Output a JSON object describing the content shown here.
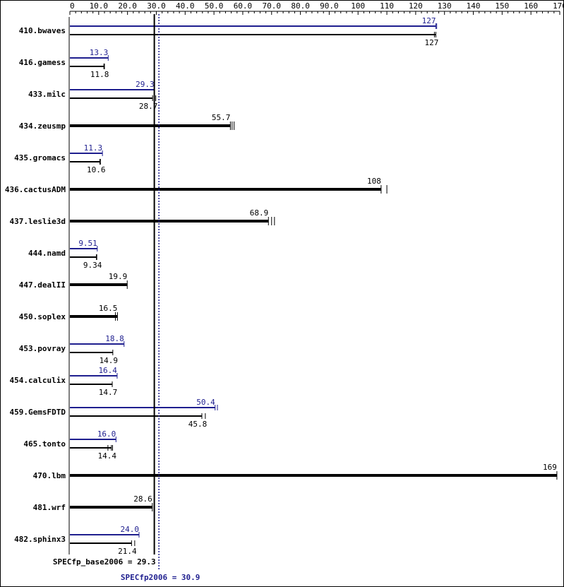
{
  "chart_data": {
    "type": "bar",
    "orientation": "horizontal",
    "xlim": [
      0,
      170
    ],
    "x_ticks": [
      "0",
      "10.0",
      "20.0",
      "30.0",
      "40.0",
      "50.0",
      "60.0",
      "70.0",
      "80.0",
      "90.0",
      "100",
      "110",
      "120",
      "130",
      "140",
      "150",
      "160",
      "170"
    ],
    "x_tick_values": [
      0,
      10,
      20,
      30,
      40,
      50,
      60,
      70,
      80,
      90,
      100,
      110,
      120,
      130,
      140,
      150,
      160,
      170
    ],
    "colors": {
      "base": "#000000",
      "peak": "#1f1f8f"
    },
    "categories": [
      "410.bwaves",
      "416.gamess",
      "433.milc",
      "434.zeusmp",
      "435.gromacs",
      "436.cactusADM",
      "437.leslie3d",
      "444.namd",
      "447.dealII",
      "450.soplex",
      "453.povray",
      "454.calculix",
      "459.GemsFDTD",
      "465.tonto",
      "470.lbm",
      "481.wrf",
      "482.sphinx3"
    ],
    "series": [
      {
        "key": "base",
        "values": [
          127,
          11.8,
          28.7,
          55.7,
          10.6,
          108,
          68.9,
          9.34,
          19.9,
          16.5,
          14.9,
          14.7,
          45.8,
          14.4,
          169,
          28.6,
          21.4
        ],
        "labels": [
          "127",
          "11.8",
          "28.7",
          "55.7",
          "10.6",
          "108",
          "68.9",
          "9.34",
          "19.9",
          "16.5",
          "14.9",
          "14.7",
          "45.8",
          "14.4",
          "169",
          "28.6",
          "21.4"
        ],
        "tick_marks": [
          [
            127,
            126.5
          ],
          [
            12.0,
            11.8
          ],
          [
            29.8,
            28.7
          ],
          [
            55.7,
            56.3,
            57.0
          ],
          [
            10.6,
            10.4
          ],
          [
            108,
            110
          ],
          [
            68.9,
            70.0,
            71.0
          ],
          [
            9.34,
            9.2
          ],
          [
            19.9
          ],
          [
            16.5,
            15.8
          ],
          [
            14.9
          ],
          [
            14.7
          ],
          [
            45.8,
            47.0
          ],
          [
            14.4,
            13.2,
            14.8
          ],
          [
            169
          ],
          [
            28.6,
            29.2
          ],
          [
            21.4,
            22.5
          ]
        ]
      },
      {
        "key": "peak",
        "values": [
          127,
          13.3,
          29.3,
          null,
          11.3,
          null,
          null,
          9.51,
          null,
          null,
          18.8,
          16.4,
          50.4,
          16.0,
          null,
          null,
          24.0
        ],
        "labels": [
          "127",
          "13.3",
          "29.3",
          "",
          "11.3",
          "",
          "",
          "9.51",
          "",
          "",
          "18.8",
          "16.4",
          "50.4",
          "16.0",
          "",
          "",
          "24.0"
        ],
        "tick_marks": [
          [
            127,
            127.3
          ],
          [
            13.3
          ],
          [
            29.3
          ],
          [],
          [
            11.3
          ],
          [],
          [],
          [
            9.51
          ],
          [],
          [],
          [
            18.8
          ],
          [
            16.4
          ],
          [
            50.4,
            51.2
          ],
          [
            16.0
          ],
          [],
          [],
          [
            24.0
          ]
        ]
      }
    ],
    "reference_lines": [
      {
        "key": "base",
        "label": "SPECfp_base2006 = 29.3",
        "value": 29.3,
        "style": "solid"
      },
      {
        "key": "peak",
        "label": "SPECfp2006 = 30.9",
        "value": 30.9,
        "style": "dotted"
      }
    ]
  }
}
